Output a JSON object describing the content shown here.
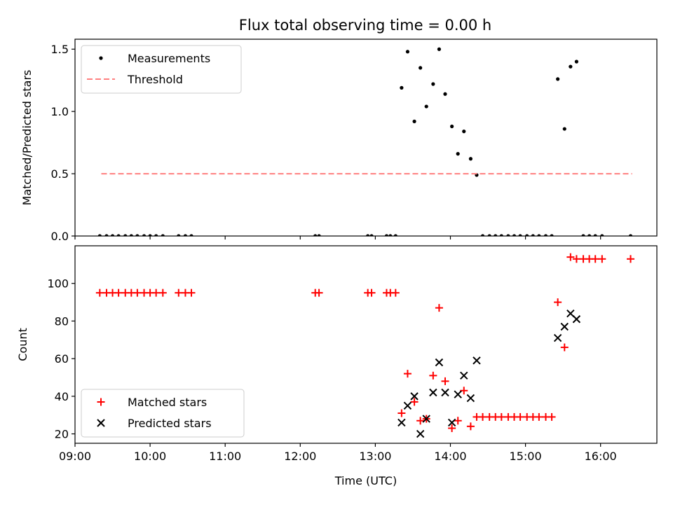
{
  "title": "Flux total observing time = 0.00 h",
  "colors": {
    "measurement": "#000000",
    "threshold": "#ff7f7f",
    "matched": "#ff0000",
    "predicted": "#000000"
  },
  "chart_data": [
    {
      "type": "scatter",
      "panel": "top",
      "xlabel": "",
      "ylabel": "Matched/Predicted stars",
      "xlim": [
        9.0,
        16.75
      ],
      "ylim": [
        0.0,
        1.58
      ],
      "yticks": [
        0.0,
        0.5,
        1.0,
        1.5
      ],
      "ytick_labels": [
        "0.0",
        "0.5",
        "1.0",
        "1.5"
      ],
      "legend_position": "top-left",
      "series": [
        {
          "name": "Measurements",
          "kind": "points",
          "color": "#000000",
          "points": [
            [
              9.33,
              0
            ],
            [
              9.42,
              0
            ],
            [
              9.5,
              0
            ],
            [
              9.58,
              0
            ],
            [
              9.67,
              0
            ],
            [
              9.75,
              0
            ],
            [
              9.83,
              0
            ],
            [
              9.92,
              0
            ],
            [
              10.0,
              0
            ],
            [
              10.08,
              0
            ],
            [
              10.17,
              0
            ],
            [
              10.38,
              0
            ],
            [
              10.47,
              0
            ],
            [
              10.55,
              0
            ],
            [
              12.2,
              0
            ],
            [
              12.25,
              0
            ],
            [
              12.9,
              0
            ],
            [
              12.95,
              0
            ],
            [
              13.15,
              0
            ],
            [
              13.2,
              0
            ],
            [
              13.27,
              0
            ],
            [
              13.35,
              1.19
            ],
            [
              13.43,
              1.48
            ],
            [
              13.52,
              0.92
            ],
            [
              13.6,
              1.35
            ],
            [
              13.68,
              1.04
            ],
            [
              13.77,
              1.22
            ],
            [
              13.85,
              1.5
            ],
            [
              13.93,
              1.14
            ],
            [
              14.02,
              0.88
            ],
            [
              14.1,
              0.66
            ],
            [
              14.18,
              0.84
            ],
            [
              14.27,
              0.62
            ],
            [
              14.35,
              0.49
            ],
            [
              14.43,
              0
            ],
            [
              14.52,
              0
            ],
            [
              14.6,
              0
            ],
            [
              14.68,
              0
            ],
            [
              14.77,
              0
            ],
            [
              14.85,
              0
            ],
            [
              14.93,
              0
            ],
            [
              15.02,
              0
            ],
            [
              15.1,
              0
            ],
            [
              15.18,
              0
            ],
            [
              15.27,
              0
            ],
            [
              15.35,
              0
            ],
            [
              15.43,
              1.26
            ],
            [
              15.52,
              0.86
            ],
            [
              15.6,
              1.36
            ],
            [
              15.68,
              1.4
            ],
            [
              15.77,
              0
            ],
            [
              15.85,
              0
            ],
            [
              15.93,
              0
            ],
            [
              16.02,
              0
            ],
            [
              16.4,
              0
            ]
          ]
        },
        {
          "name": "Threshold",
          "kind": "dashed-line",
          "color": "#ff7f7f",
          "points": [
            [
              9.35,
              0.5
            ],
            [
              16.42,
              0.5
            ]
          ]
        }
      ]
    },
    {
      "type": "scatter",
      "panel": "bottom",
      "xlabel": "Time (UTC)",
      "ylabel": "Count",
      "xlim": [
        9.0,
        16.75
      ],
      "ylim": [
        15.0,
        120.0
      ],
      "yticks": [
        20,
        40,
        60,
        80,
        100
      ],
      "ytick_labels": [
        "20",
        "40",
        "60",
        "80",
        "100"
      ],
      "xticks": [
        9,
        10,
        11,
        12,
        13,
        14,
        15,
        16
      ],
      "xtick_labels": [
        "09:00",
        "10:00",
        "11:00",
        "12:00",
        "13:00",
        "14:00",
        "15:00",
        "16:00"
      ],
      "legend_position": "bottom-left",
      "series": [
        {
          "name": "Matched stars",
          "kind": "plus",
          "color": "#ff0000",
          "points": [
            [
              9.33,
              95
            ],
            [
              9.42,
              95
            ],
            [
              9.5,
              95
            ],
            [
              9.58,
              95
            ],
            [
              9.67,
              95
            ],
            [
              9.75,
              95
            ],
            [
              9.83,
              95
            ],
            [
              9.92,
              95
            ],
            [
              10.0,
              95
            ],
            [
              10.08,
              95
            ],
            [
              10.17,
              95
            ],
            [
              10.38,
              95
            ],
            [
              10.47,
              95
            ],
            [
              10.55,
              95
            ],
            [
              12.2,
              95
            ],
            [
              12.25,
              95
            ],
            [
              12.9,
              95
            ],
            [
              12.95,
              95
            ],
            [
              13.15,
              95
            ],
            [
              13.2,
              95
            ],
            [
              13.27,
              95
            ],
            [
              13.35,
              31
            ],
            [
              13.43,
              52
            ],
            [
              13.52,
              37
            ],
            [
              13.6,
              27
            ],
            [
              13.68,
              28
            ],
            [
              13.77,
              51
            ],
            [
              13.85,
              87
            ],
            [
              13.93,
              48
            ],
            [
              14.02,
              23
            ],
            [
              14.1,
              27
            ],
            [
              14.18,
              43
            ],
            [
              14.27,
              24
            ],
            [
              14.35,
              29
            ],
            [
              14.43,
              29
            ],
            [
              14.52,
              29
            ],
            [
              14.6,
              29
            ],
            [
              14.68,
              29
            ],
            [
              14.77,
              29
            ],
            [
              14.85,
              29
            ],
            [
              14.93,
              29
            ],
            [
              15.02,
              29
            ],
            [
              15.1,
              29
            ],
            [
              15.18,
              29
            ],
            [
              15.27,
              29
            ],
            [
              15.35,
              29
            ],
            [
              15.43,
              90
            ],
            [
              15.52,
              66
            ],
            [
              15.6,
              114
            ],
            [
              15.68,
              113
            ],
            [
              15.77,
              113
            ],
            [
              15.85,
              113
            ],
            [
              15.93,
              113
            ],
            [
              16.02,
              113
            ],
            [
              16.4,
              113
            ]
          ]
        },
        {
          "name": "Predicted stars",
          "kind": "cross",
          "color": "#000000",
          "points": [
            [
              13.35,
              26
            ],
            [
              13.43,
              35
            ],
            [
              13.52,
              40
            ],
            [
              13.6,
              20
            ],
            [
              13.68,
              28
            ],
            [
              13.77,
              42
            ],
            [
              13.85,
              58
            ],
            [
              13.93,
              42
            ],
            [
              14.02,
              26
            ],
            [
              14.1,
              41
            ],
            [
              14.18,
              51
            ],
            [
              14.27,
              39
            ],
            [
              14.35,
              59
            ],
            [
              15.43,
              71
            ],
            [
              15.52,
              77
            ],
            [
              15.6,
              84
            ],
            [
              15.68,
              81
            ]
          ]
        }
      ]
    }
  ]
}
